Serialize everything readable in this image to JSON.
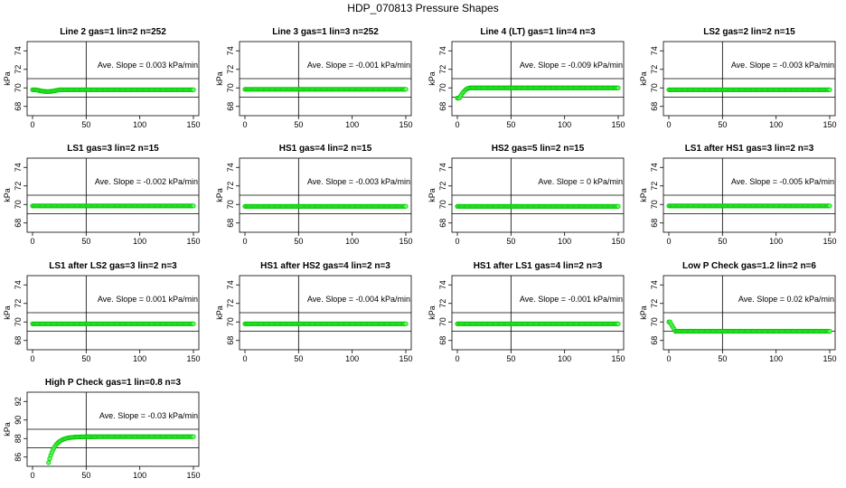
{
  "title": "HDP_070813  Pressure Shapes",
  "colors": {
    "points": "#00c800",
    "point_fill": "#66ff66",
    "axes": "#000000"
  },
  "chart_data": [
    {
      "type": "scatter",
      "title": "Line 2 gas=1 lin=2 n=252",
      "ylabel": "kPa",
      "xlim": [
        0,
        150
      ],
      "ylim": [
        67,
        75
      ],
      "xticks": [
        0,
        50,
        100,
        150
      ],
      "yticks": [
        68,
        70,
        72,
        74
      ],
      "hlines": [
        71,
        69
      ],
      "vline": 50,
      "annotation": "Ave. Slope =  0.003  kPa/min",
      "series": [
        {
          "x": [
            0,
            150
          ],
          "shape": "flat",
          "level": 69.8,
          "dip": 0.2
        }
      ]
    },
    {
      "type": "scatter",
      "title": "Line 3 gas=1 lin=3 n=252",
      "ylabel": "kPa",
      "xlim": [
        0,
        150
      ],
      "ylim": [
        67,
        75
      ],
      "xticks": [
        0,
        50,
        100,
        150
      ],
      "yticks": [
        68,
        70,
        72,
        74
      ],
      "hlines": [
        71,
        69
      ],
      "vline": 50,
      "annotation": "Ave. Slope =  -0.001  kPa/min",
      "series": [
        {
          "x": [
            0,
            150
          ],
          "shape": "flat",
          "level": 69.85
        }
      ]
    },
    {
      "type": "scatter",
      "title": "Line 4 (LT) gas=1 lin=4 n=3",
      "ylabel": "kPa",
      "xlim": [
        0,
        150
      ],
      "ylim": [
        67,
        75
      ],
      "xticks": [
        0,
        50,
        100,
        150
      ],
      "yticks": [
        68,
        70,
        72,
        74
      ],
      "hlines": [
        71,
        69
      ],
      "vline": 50,
      "annotation": "Ave. Slope =  -0.009  kPa/min",
      "series": [
        {
          "x": [
            0,
            150
          ],
          "shape": "rise",
          "level": 70.0,
          "start": 68.9,
          "riseEnd": 12
        }
      ]
    },
    {
      "type": "scatter",
      "title": "LS2 gas=2 lin=2 n=15",
      "ylabel": "kPa",
      "xlim": [
        0,
        150
      ],
      "ylim": [
        67,
        75
      ],
      "xticks": [
        0,
        50,
        100,
        150
      ],
      "yticks": [
        68,
        70,
        72,
        74
      ],
      "hlines": [
        71,
        69
      ],
      "vline": 50,
      "annotation": "Ave. Slope =  -0.003  kPa/min",
      "series": [
        {
          "x": [
            0,
            150
          ],
          "shape": "flat",
          "level": 69.8
        }
      ]
    },
    {
      "type": "scatter",
      "title": "LS1 gas=3 lin=2 n=15",
      "ylabel": "kPa",
      "xlim": [
        0,
        150
      ],
      "ylim": [
        67,
        75
      ],
      "xticks": [
        0,
        50,
        100,
        150
      ],
      "yticks": [
        68,
        70,
        72,
        74
      ],
      "hlines": [
        71,
        69
      ],
      "vline": 50,
      "annotation": "Ave. Slope =  -0.002  kPa/min",
      "series": [
        {
          "x": [
            0,
            150
          ],
          "shape": "flat",
          "level": 69.85
        }
      ]
    },
    {
      "type": "scatter",
      "title": "HS1 gas=4 lin=2 n=15",
      "ylabel": "kPa",
      "xlim": [
        0,
        150
      ],
      "ylim": [
        67,
        75
      ],
      "xticks": [
        0,
        50,
        100,
        150
      ],
      "yticks": [
        68,
        70,
        72,
        74
      ],
      "hlines": [
        71,
        69
      ],
      "vline": 50,
      "annotation": "Ave. Slope =  -0.003  kPa/min",
      "series": [
        {
          "x": [
            0,
            150
          ],
          "shape": "flat",
          "level": 69.8
        }
      ]
    },
    {
      "type": "scatter",
      "title": "HS2 gas=5 lin=2 n=15",
      "ylabel": "kPa",
      "xlim": [
        0,
        150
      ],
      "ylim": [
        67,
        75
      ],
      "xticks": [
        0,
        50,
        100,
        150
      ],
      "yticks": [
        68,
        70,
        72,
        74
      ],
      "hlines": [
        71,
        69
      ],
      "vline": 50,
      "annotation": "Ave. Slope =  0  kPa/min",
      "series": [
        {
          "x": [
            0,
            150
          ],
          "shape": "flat",
          "level": 69.8
        }
      ]
    },
    {
      "type": "scatter",
      "title": "LS1 after HS1 gas=3 lin=2 n=3",
      "ylabel": "kPa",
      "xlim": [
        0,
        150
      ],
      "ylim": [
        67,
        75
      ],
      "xticks": [
        0,
        50,
        100,
        150
      ],
      "yticks": [
        68,
        70,
        72,
        74
      ],
      "hlines": [
        71,
        69
      ],
      "vline": 50,
      "annotation": "Ave. Slope =  -0.005  kPa/min",
      "series": [
        {
          "x": [
            0,
            150
          ],
          "shape": "flat",
          "level": 69.85
        }
      ]
    },
    {
      "type": "scatter",
      "title": "LS1 after LS2 gas=3 lin=2 n=3",
      "ylabel": "kPa",
      "xlim": [
        0,
        150
      ],
      "ylim": [
        67,
        75
      ],
      "xticks": [
        0,
        50,
        100,
        150
      ],
      "yticks": [
        68,
        70,
        72,
        74
      ],
      "hlines": [
        71,
        69
      ],
      "vline": 50,
      "annotation": "Ave. Slope =  0.001  kPa/min",
      "series": [
        {
          "x": [
            0,
            150
          ],
          "shape": "flat",
          "level": 69.8
        }
      ]
    },
    {
      "type": "scatter",
      "title": "HS1 after HS2 gas=4 lin=2 n=3",
      "ylabel": "kPa",
      "xlim": [
        0,
        150
      ],
      "ylim": [
        67,
        75
      ],
      "xticks": [
        0,
        50,
        100,
        150
      ],
      "yticks": [
        68,
        70,
        72,
        74
      ],
      "hlines": [
        71,
        69
      ],
      "vline": 50,
      "annotation": "Ave. Slope =  -0.004  kPa/min",
      "series": [
        {
          "x": [
            0,
            150
          ],
          "shape": "flat",
          "level": 69.8
        }
      ]
    },
    {
      "type": "scatter",
      "title": "HS1 after LS1 gas=4 lin=2 n=3",
      "ylabel": "kPa",
      "xlim": [
        0,
        150
      ],
      "ylim": [
        67,
        75
      ],
      "xticks": [
        0,
        50,
        100,
        150
      ],
      "yticks": [
        68,
        70,
        72,
        74
      ],
      "hlines": [
        71,
        69
      ],
      "vline": 50,
      "annotation": "Ave. Slope =  -0.001  kPa/min",
      "series": [
        {
          "x": [
            0,
            150
          ],
          "shape": "flat",
          "level": 69.8
        }
      ]
    },
    {
      "type": "scatter",
      "title": "Low P Check gas=1.2 lin=2 n=6",
      "ylabel": "kPa",
      "xlim": [
        0,
        150
      ],
      "ylim": [
        67,
        75
      ],
      "xticks": [
        0,
        50,
        100,
        150
      ],
      "yticks": [
        68,
        70,
        72,
        74
      ],
      "hlines": [
        71,
        69
      ],
      "vline": 50,
      "annotation": "Ave. Slope =  0.02  kPa/min",
      "series": [
        {
          "x": [
            0,
            150
          ],
          "shape": "drop",
          "level": 69.0,
          "start": 70.0,
          "dropEnd": 6
        }
      ]
    },
    {
      "type": "scatter",
      "title": "High P Check gas=1 lin=0.8 n=3",
      "ylabel": "kPa",
      "xlim": [
        0,
        150
      ],
      "ylim": [
        85,
        93
      ],
      "xticks": [
        0,
        50,
        100,
        150
      ],
      "yticks": [
        86,
        88,
        90,
        92
      ],
      "hlines": [
        89,
        87
      ],
      "vline": 50,
      "annotation": "Ave. Slope =  -0.03  kPa/min",
      "series": [
        {
          "x": [
            15,
            150
          ],
          "shape": "saturate",
          "level": 88.2,
          "start": 85.4,
          "tau": 6
        }
      ]
    }
  ]
}
